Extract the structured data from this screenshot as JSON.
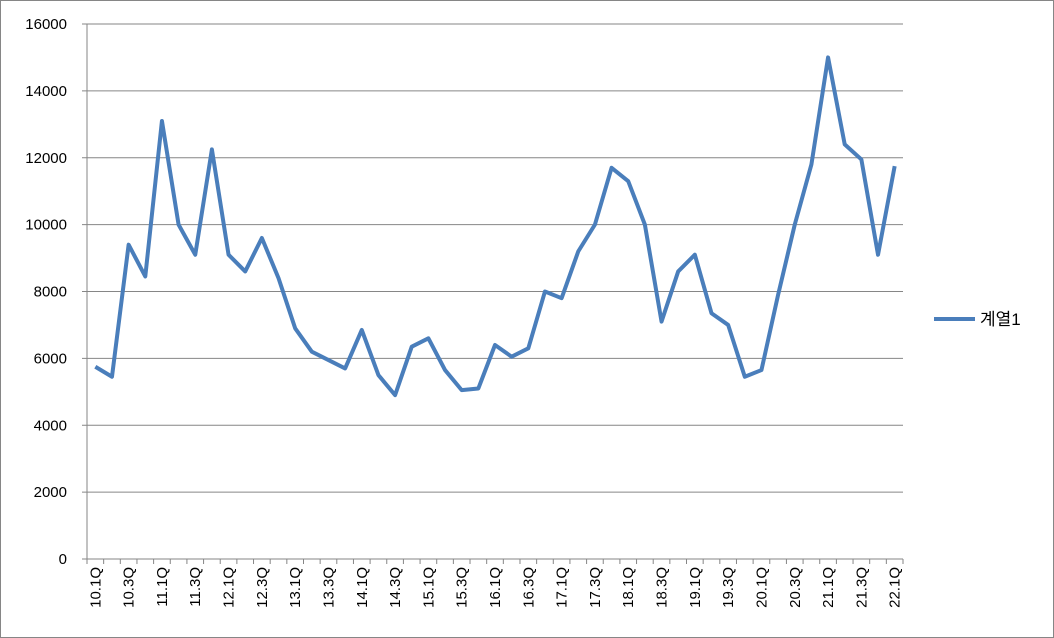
{
  "chart_data": {
    "type": "line",
    "categories": [
      "10.1Q",
      null,
      "10.3Q",
      null,
      "11.1Q",
      null,
      "11.3Q",
      null,
      "12.1Q",
      null,
      "12.3Q",
      null,
      "13.1Q",
      null,
      "13.3Q",
      null,
      "14.1Q",
      null,
      "14.3Q",
      null,
      "15.1Q",
      null,
      "15.3Q",
      null,
      "16.1Q",
      null,
      "16.3Q",
      null,
      "17.1Q",
      null,
      "17.3Q",
      null,
      "18.1Q",
      null,
      "18.3Q",
      null,
      "19.1Q",
      null,
      "19.3Q",
      null,
      "20.1Q",
      null,
      "20.3Q",
      null,
      "21.1Q",
      null,
      "21.3Q",
      null,
      "22.1Q"
    ],
    "series": [
      {
        "name": "계열1",
        "color": "#4a7ebb",
        "values": [
          5750,
          5450,
          9400,
          8450,
          13100,
          10000,
          9100,
          12250,
          9100,
          8600,
          9600,
          8400,
          6900,
          6200,
          5950,
          5700,
          6850,
          5500,
          4900,
          6350,
          6600,
          5650,
          5050,
          5100,
          6400,
          6050,
          6300,
          8000,
          7800,
          9200,
          10000,
          11700,
          11300,
          10000,
          7100,
          8600,
          9100,
          7350,
          7000,
          5450,
          5650,
          7900,
          10000,
          11800,
          15000,
          12400,
          11950,
          9100,
          11750
        ]
      }
    ],
    "ylim": [
      0,
      16000
    ],
    "yticks": [
      0,
      2000,
      4000,
      6000,
      8000,
      10000,
      12000,
      14000,
      16000
    ],
    "grid": true,
    "legend": "right"
  }
}
